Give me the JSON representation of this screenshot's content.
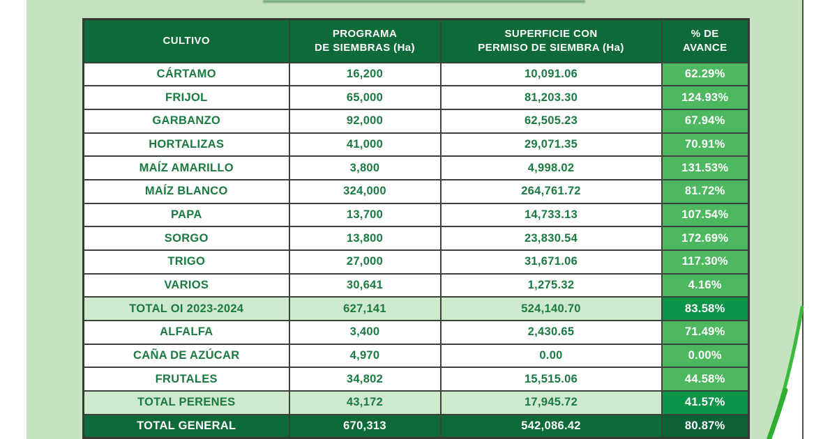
{
  "colors": {
    "bg_green": "#c5e3c1",
    "header_green": "#0e6b39",
    "text_green": "#1b7a42",
    "pct_green": "#4db85f",
    "subtotal_bg": "#cfe9cd",
    "subtotal_pct": "#0d9448",
    "grand_pct": "#0c6236",
    "banner_green": "#2f7a4c",
    "swoosh_green": "#3cbb3b",
    "grid_border": "#3b413b"
  },
  "table": {
    "headers": [
      {
        "id": "cultivo",
        "lines": [
          "CULTIVO"
        ]
      },
      {
        "id": "programa",
        "lines": [
          "PROGRAMA",
          "DE SIEMBRAS (Ha)"
        ]
      },
      {
        "id": "superficie",
        "lines": [
          "SUPERFICIE CON",
          "PERMISO DE SIEMBRA (Ha)"
        ]
      },
      {
        "id": "avance",
        "lines": [
          "% DE",
          "AVANCE"
        ]
      }
    ],
    "rows": [
      {
        "type": "normal",
        "cultivo": "CÁRTAMO",
        "programa": "16,200",
        "superficie": "10,091.06",
        "avance": "62.29%"
      },
      {
        "type": "normal",
        "cultivo": "FRIJOL",
        "programa": "65,000",
        "superficie": "81,203.30",
        "avance": "124.93%"
      },
      {
        "type": "normal",
        "cultivo": "GARBANZO",
        "programa": "92,000",
        "superficie": "62,505.23",
        "avance": "67.94%"
      },
      {
        "type": "normal",
        "cultivo": "HORTALIZAS",
        "programa": "41,000",
        "superficie": "29,071.35",
        "avance": "70.91%"
      },
      {
        "type": "normal",
        "cultivo": "MAÍZ AMARILLO",
        "programa": "3,800",
        "superficie": "4,998.02",
        "avance": "131.53%"
      },
      {
        "type": "normal",
        "cultivo": "MAÍZ BLANCO",
        "programa": "324,000",
        "superficie": "264,761.72",
        "avance": "81.72%"
      },
      {
        "type": "normal",
        "cultivo": "PAPA",
        "programa": "13,700",
        "superficie": "14,733.13",
        "avance": "107.54%"
      },
      {
        "type": "normal",
        "cultivo": "SORGO",
        "programa": "13,800",
        "superficie": "23,830.54",
        "avance": "172.69%"
      },
      {
        "type": "normal",
        "cultivo": "TRIGO",
        "programa": "27,000",
        "superficie": "31,671.06",
        "avance": "117.30%"
      },
      {
        "type": "normal",
        "cultivo": "VARIOS",
        "programa": "30,641",
        "superficie": "1,275.32",
        "avance": "4.16%"
      },
      {
        "type": "subtotal",
        "cultivo": "TOTAL OI 2023-2024",
        "programa": "627,141",
        "superficie": "524,140.70",
        "avance": "83.58%"
      },
      {
        "type": "normal",
        "cultivo": "ALFALFA",
        "programa": "3,400",
        "superficie": "2,430.65",
        "avance": "71.49%"
      },
      {
        "type": "normal",
        "cultivo": "CAÑA DE AZÚCAR",
        "programa": "4,970",
        "superficie": "0.00",
        "avance": "0.00%"
      },
      {
        "type": "normal",
        "cultivo": "FRUTALES",
        "programa": "34,802",
        "superficie": "15,515.06",
        "avance": "44.58%"
      },
      {
        "type": "subtotal",
        "cultivo": "TOTAL PERENES",
        "programa": "43,172",
        "superficie": "17,945.72",
        "avance": "41.57%"
      },
      {
        "type": "grand",
        "cultivo": "TOTAL GENERAL",
        "programa": "670,313",
        "superficie": "542,086.42",
        "avance": "80.87%"
      }
    ]
  },
  "chart_data": {
    "type": "table",
    "columns": [
      "CULTIVO",
      "PROGRAMA DE SIEMBRAS (Ha)",
      "SUPERFICIE CON PERMISO DE SIEMBRA (Ha)",
      "% DE AVANCE"
    ],
    "rows": [
      [
        "CÁRTAMO",
        16200,
        10091.06,
        62.29
      ],
      [
        "FRIJOL",
        65000,
        81203.3,
        124.93
      ],
      [
        "GARBANZO",
        92000,
        62505.23,
        67.94
      ],
      [
        "HORTALIZAS",
        41000,
        29071.35,
        70.91
      ],
      [
        "MAÍZ AMARILLO",
        3800,
        4998.02,
        131.53
      ],
      [
        "MAÍZ BLANCO",
        324000,
        264761.72,
        81.72
      ],
      [
        "PAPA",
        13700,
        14733.13,
        107.54
      ],
      [
        "SORGO",
        13800,
        23830.54,
        172.69
      ],
      [
        "TRIGO",
        27000,
        31671.06,
        117.3
      ],
      [
        "VARIOS",
        30641,
        1275.32,
        4.16
      ],
      [
        "TOTAL OI 2023-2024",
        627141,
        524140.7,
        83.58
      ],
      [
        "ALFALFA",
        3400,
        2430.65,
        71.49
      ],
      [
        "CAÑA DE AZÚCAR",
        4970,
        0.0,
        0.0
      ],
      [
        "FRUTALES",
        34802,
        15515.06,
        44.58
      ],
      [
        "TOTAL PERENES",
        43172,
        17945.72,
        41.57
      ],
      [
        "TOTAL GENERAL",
        670313,
        542086.42,
        80.87
      ]
    ]
  }
}
